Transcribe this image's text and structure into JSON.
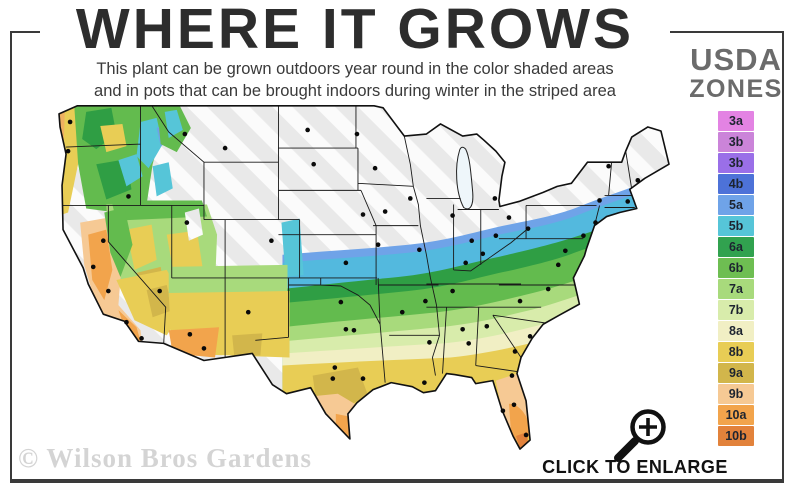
{
  "header": {
    "title": "WHERE IT GROWS",
    "subtitle_line1": "This plant can be grown outdoors year round in the color shaded areas",
    "subtitle_line2": "and in pots that can be brought indoors during winter in the striped area"
  },
  "legend": {
    "title_line1": "USDA",
    "title_line2": "ZONES",
    "zones": [
      {
        "label": "3a",
        "color": "#e383e3"
      },
      {
        "label": "3b",
        "color": "#cb84d9"
      },
      {
        "label": "3b",
        "color": "#9a6fe8"
      },
      {
        "label": "4b",
        "color": "#4d72d8"
      },
      {
        "label": "5a",
        "color": "#6fa3e8"
      },
      {
        "label": "5b",
        "color": "#56c5d8"
      },
      {
        "label": "6a",
        "color": "#31a24f"
      },
      {
        "label": "6b",
        "color": "#6ebe52"
      },
      {
        "label": "7a",
        "color": "#a8da7c"
      },
      {
        "label": "7b",
        "color": "#d8ecab"
      },
      {
        "label": "8a",
        "color": "#f1efc4"
      },
      {
        "label": "8b",
        "color": "#e8cd55"
      },
      {
        "label": "9a",
        "color": "#d2b64b"
      },
      {
        "label": "9b",
        "color": "#f6c994"
      },
      {
        "label": "10a",
        "color": "#f2a44c"
      },
      {
        "label": "10b",
        "color": "#e2823b"
      }
    ]
  },
  "map": {
    "region": "Continental United States",
    "striped_area_color": "#ebebeb",
    "outline_color": "#111111"
  },
  "footer": {
    "enlarge_label": "CLICK TO ENLARGE",
    "enlarge_icon": "magnifier-plus-icon",
    "watermark": "© Wilson Bros Gardens"
  }
}
